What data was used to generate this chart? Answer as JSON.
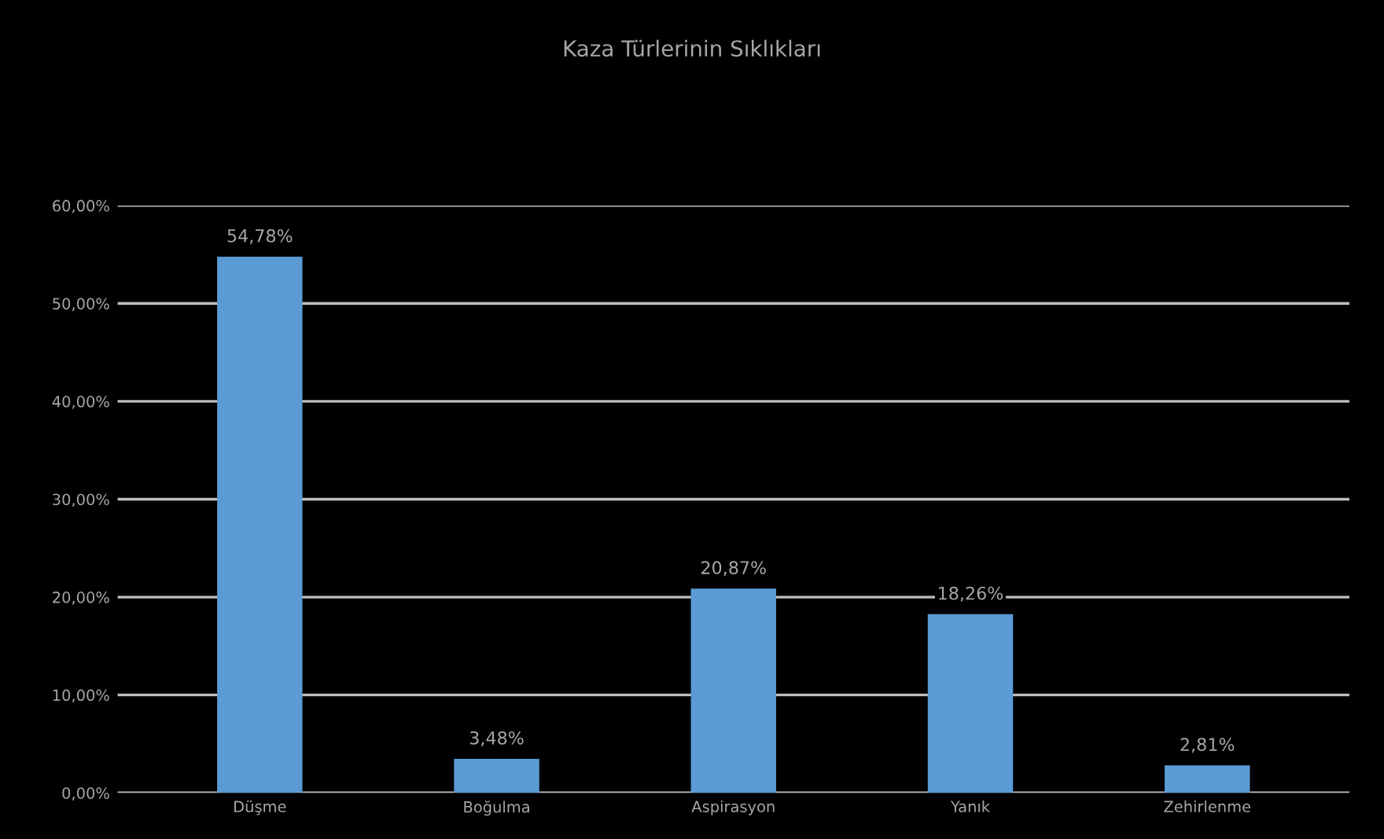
{
  "chart_data": {
    "type": "bar",
    "title": "Kaza Türlerinin Sıklıkları",
    "categories": [
      "Düşme",
      "Boğulma",
      "Aspirasyon",
      "Yanık",
      "Zehirlenme"
    ],
    "values": [
      54.78,
      3.48,
      20.87,
      18.26,
      2.81
    ],
    "value_labels": [
      "54,78%",
      "3,48%",
      "20,87%",
      "18,26%",
      "2,81%"
    ],
    "color": "#5b9bd5",
    "ylim": [
      0,
      60
    ],
    "yticks": [
      {
        "value": 0,
        "label": "0,00%"
      },
      {
        "value": 10,
        "label": "10,00%"
      },
      {
        "value": 20,
        "label": "20,00%"
      },
      {
        "value": 30,
        "label": "30,00%"
      },
      {
        "value": 40,
        "label": "40,00%"
      },
      {
        "value": 50,
        "label": "50,00%"
      },
      {
        "value": 60,
        "label": "60,00%"
      }
    ],
    "grid": "y"
  }
}
